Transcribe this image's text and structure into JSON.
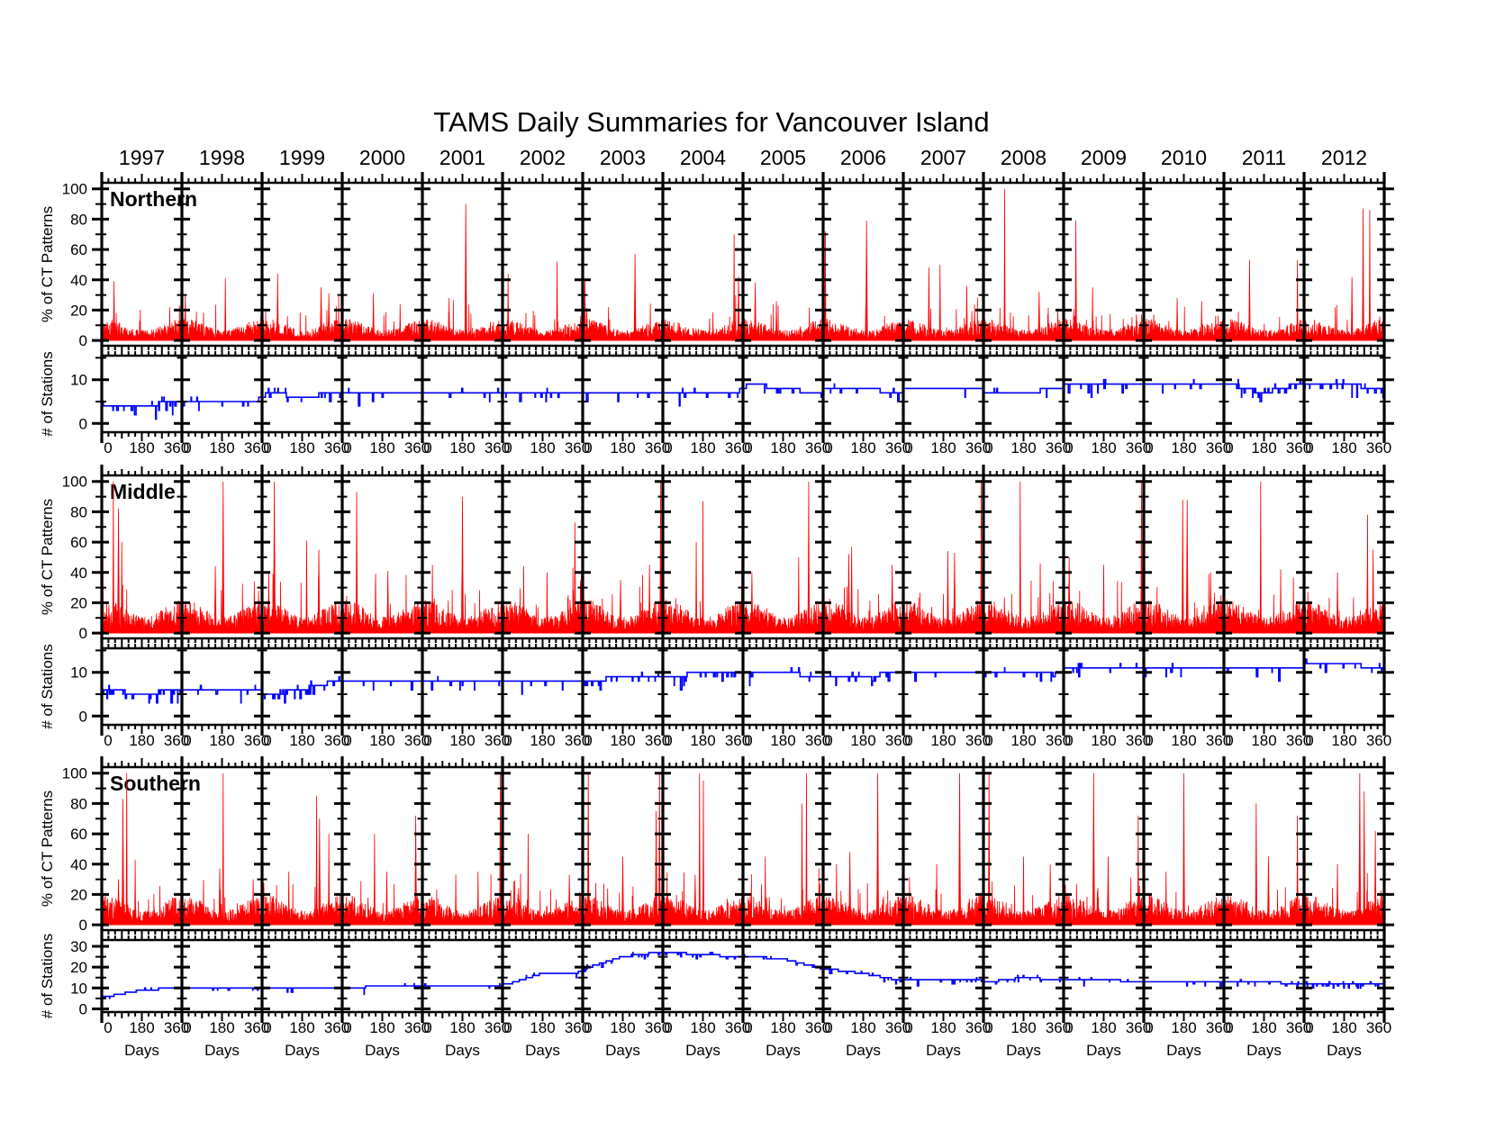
{
  "chart_data": {
    "type": "line",
    "title": "TAMS Daily Summaries for Vancouver Island",
    "xlabel": "Days",
    "years": [
      1997,
      1998,
      1999,
      2000,
      2001,
      2002,
      2003,
      2004,
      2005,
      2006,
      2007,
      2008,
      2009,
      2010,
      2011,
      2012
    ],
    "days_per_year": 360,
    "x_ticks": [
      0,
      180,
      360
    ],
    "x_minor_step": 30,
    "colors": {
      "ct_series": "#ff0000",
      "stations_series": "#0000ff",
      "frame": "#000000"
    },
    "legend": "none",
    "grid": "off",
    "regions": [
      {
        "name": "Northern",
        "ct": {
          "ylabel": "% of CT Patterns",
          "ylim": [
            0,
            100
          ],
          "yticks": [
            0,
            20,
            40,
            60,
            80,
            100
          ],
          "baseline": 6.5,
          "spikes_by_year": [
            [
              [
                55,
                39
              ]
            ],
            [
              [
                15,
                30
              ],
              [
                195,
                41
              ]
            ],
            [
              [
                70,
                44
              ],
              [
                265,
                35
              ],
              [
                300,
                31
              ]
            ],
            [
              [
                140,
                31
              ],
              [
                260,
                24
              ]
            ],
            [
              [
                195,
                90
              ],
              [
                120,
                28
              ]
            ],
            [
              [
                25,
                44
              ],
              [
                245,
                52
              ]
            ],
            [
              [
                235,
                57
              ],
              [
                10,
                40
              ]
            ],
            [
              [
                320,
                70
              ],
              [
                340,
                42
              ]
            ],
            [
              [
                55,
                38
              ],
              [
                150,
                26
              ]
            ],
            [
              [
                10,
                72
              ],
              [
                195,
                79
              ]
            ],
            [
              [
                115,
                48
              ],
              [
                165,
                50
              ],
              [
                285,
                36
              ]
            ],
            [
              [
                95,
                100
              ],
              [
                250,
                32
              ]
            ],
            [
              [
                55,
                79
              ],
              [
                130,
                35
              ]
            ],
            [
              [
                150,
                28
              ],
              [
                260,
                26
              ]
            ],
            [
              [
                115,
                53
              ],
              [
                330,
                53
              ]
            ],
            [
              [
                265,
                87
              ],
              [
                295,
                86
              ],
              [
                215,
                42
              ]
            ]
          ]
        },
        "stations": {
          "ylabel": "# of Stations",
          "ylim": [
            0,
            15
          ],
          "yticks": [
            0,
            10
          ],
          "levels_by_year": [
            [
              4,
              4,
              5
            ],
            [
              5,
              5,
              5
            ],
            [
              7,
              6,
              7
            ],
            [
              7,
              7,
              7
            ],
            [
              7,
              7,
              7
            ],
            [
              7,
              7,
              7
            ],
            [
              7,
              7,
              7
            ],
            [
              7,
              7,
              7
            ],
            [
              9,
              8,
              7
            ],
            [
              8,
              8,
              7
            ],
            [
              8,
              8,
              8
            ],
            [
              7,
              7,
              8
            ],
            [
              9,
              9,
              9
            ],
            [
              9,
              9,
              9
            ],
            [
              9,
              7,
              9
            ],
            [
              9,
              9,
              8
            ]
          ],
          "noise_by_year": [
            2,
            1,
            2,
            0.5,
            1,
            1,
            1.5,
            1,
            1.5,
            1,
            0.5,
            1,
            1.5,
            1,
            3,
            3
          ]
        }
      },
      {
        "name": "Middle",
        "ct": {
          "ylabel": "% of CT Patterns",
          "ylim": [
            0,
            100
          ],
          "yticks": [
            0,
            20,
            40,
            60,
            80,
            100
          ],
          "baseline": 10,
          "spikes_by_year": [
            [
              [
                5,
                51
              ],
              [
                52,
                100
              ],
              [
                75,
                82
              ],
              [
                90,
                60
              ]
            ],
            [
              [
                150,
                44
              ],
              [
                185,
                100
              ]
            ],
            [
              [
                55,
                100
              ],
              [
                200,
                61
              ],
              [
                255,
                55
              ],
              [
                30,
                40
              ]
            ],
            [
              [
                65,
                93
              ],
              [
                205,
                41
              ],
              [
                150,
                39
              ]
            ],
            [
              [
                180,
                90
              ],
              [
                45,
                45
              ]
            ],
            [
              [
                325,
                73
              ],
              [
                200,
                40
              ],
              [
                95,
                44
              ]
            ],
            [
              [
                350,
                100
              ],
              [
                300,
                45
              ],
              [
                170,
                35
              ]
            ],
            [
              [
                180,
                87
              ],
              [
                150,
                60
              ],
              [
                355,
                50
              ]
            ],
            [
              [
                295,
                100
              ],
              [
                250,
                50
              ],
              [
                40,
                40
              ]
            ],
            [
              [
                115,
                52
              ],
              [
                128,
                57
              ],
              [
                310,
                45
              ]
            ],
            [
              [
                350,
                100
              ],
              [
                200,
                54
              ],
              [
                230,
                53
              ]
            ],
            [
              [
                165,
                100
              ],
              [
                255,
                46
              ]
            ],
            [
              [
                350,
                100
              ],
              [
                25,
                50
              ],
              [
                180,
                45
              ]
            ],
            [
              [
                175,
                88
              ],
              [
                195,
                88
              ],
              [
                300,
                40
              ]
            ],
            [
              [
                165,
                100
              ],
              [
                255,
                42
              ]
            ],
            [
              [
                285,
                78
              ],
              [
                310,
                55
              ],
              [
                150,
                40
              ]
            ]
          ]
        },
        "stations": {
          "ylabel": "# of Stations",
          "ylim": [
            0,
            15
          ],
          "yticks": [
            0,
            10
          ],
          "levels_by_year": [
            [
              6,
              5,
              6
            ],
            [
              6,
              6,
              6
            ],
            [
              5,
              6,
              8
            ],
            [
              8,
              8,
              8
            ],
            [
              8,
              8,
              8
            ],
            [
              8,
              8,
              8
            ],
            [
              8,
              9,
              9
            ],
            [
              9,
              10,
              10
            ],
            [
              10,
              10,
              9
            ],
            [
              9,
              9,
              10
            ],
            [
              10,
              10,
              10
            ],
            [
              10,
              10,
              10
            ],
            [
              11,
              11,
              11
            ],
            [
              11,
              11,
              11
            ],
            [
              11,
              11,
              11
            ],
            [
              12,
              12,
              11
            ]
          ],
          "noise_by_year": [
            3,
            1,
            3,
            0.5,
            1,
            1,
            2,
            2.5,
            1.5,
            1.5,
            0.5,
            1.5,
            1,
            1,
            1,
            1.5
          ]
        }
      },
      {
        "name": "Southern",
        "ct": {
          "ylabel": "% of CT Patterns",
          "ylim": [
            0,
            100
          ],
          "yticks": [
            0,
            20,
            40,
            60,
            80,
            100
          ],
          "baseline": 9,
          "spikes_by_year": [
            [
              [
                95,
                83
              ],
              [
                112,
                100
              ],
              [
                150,
                43
              ],
              [
                75,
                30
              ]
            ],
            [
              [
                170,
                37
              ],
              [
                185,
                100
              ],
              [
                320,
                30
              ]
            ],
            [
              [
                245,
                85
              ],
              [
                258,
                70
              ],
              [
                300,
                60
              ],
              [
                120,
                35
              ]
            ],
            [
              [
                145,
                60
              ],
              [
                330,
                72
              ],
              [
                200,
                35
              ]
            ],
            [
              [
                350,
                100
              ],
              [
                150,
                33
              ],
              [
                250,
                35
              ]
            ],
            [
              [
                115,
                60
              ],
              [
                300,
                33
              ]
            ],
            [
              [
                25,
                100
              ],
              [
                330,
                75
              ],
              [
                345,
                100
              ],
              [
                180,
                45
              ]
            ],
            [
              [
                165,
                100
              ],
              [
                182,
                95
              ],
              [
                145,
                33
              ]
            ],
            [
              [
                285,
                100
              ],
              [
                265,
                80
              ],
              [
                100,
                45
              ]
            ],
            [
              [
                245,
                100
              ],
              [
                60,
                40
              ],
              [
                120,
                48
              ]
            ],
            [
              [
                253,
                100
              ],
              [
                150,
                40
              ]
            ],
            [
              [
                25,
                100
              ],
              [
                180,
                45
              ],
              [
                300,
                40
              ]
            ],
            [
              [
                135,
                100
              ],
              [
                335,
                72
              ],
              [
                200,
                45
              ]
            ],
            [
              [
                180,
                100
              ],
              [
                100,
                35
              ]
            ],
            [
              [
                145,
                80
              ],
              [
                330,
                72
              ],
              [
                200,
                45
              ]
            ],
            [
              [
                250,
                100
              ],
              [
                270,
                88
              ],
              [
                320,
                62
              ],
              [
                150,
                40
              ]
            ]
          ]
        },
        "stations": {
          "ylabel": "# of Stations",
          "ylim": [
            0,
            30
          ],
          "yticks": [
            0,
            10,
            20,
            30
          ],
          "levels_by_year": [
            [
              6,
              9,
              10
            ],
            [
              10,
              10,
              10
            ],
            [
              10,
              10,
              10
            ],
            [
              10,
              11,
              11
            ],
            [
              11,
              11,
              11
            ],
            [
              12,
              17,
              17
            ],
            [
              20,
              25,
              27
            ],
            [
              27,
              26,
              25
            ],
            [
              25,
              24,
              20
            ],
            [
              19,
              17,
              14
            ],
            [
              14,
              14,
              14
            ],
            [
              13,
              15,
              14
            ],
            [
              14,
              14,
              13
            ],
            [
              13,
              13,
              13
            ],
            [
              13,
              13,
              12
            ],
            [
              12,
              12,
              12
            ]
          ],
          "noise_by_year": [
            1,
            0.5,
            0.5,
            0.5,
            0.5,
            1,
            2,
            1.5,
            1.5,
            2,
            1,
            2,
            1.5,
            1,
            1.5,
            3
          ]
        }
      }
    ]
  }
}
